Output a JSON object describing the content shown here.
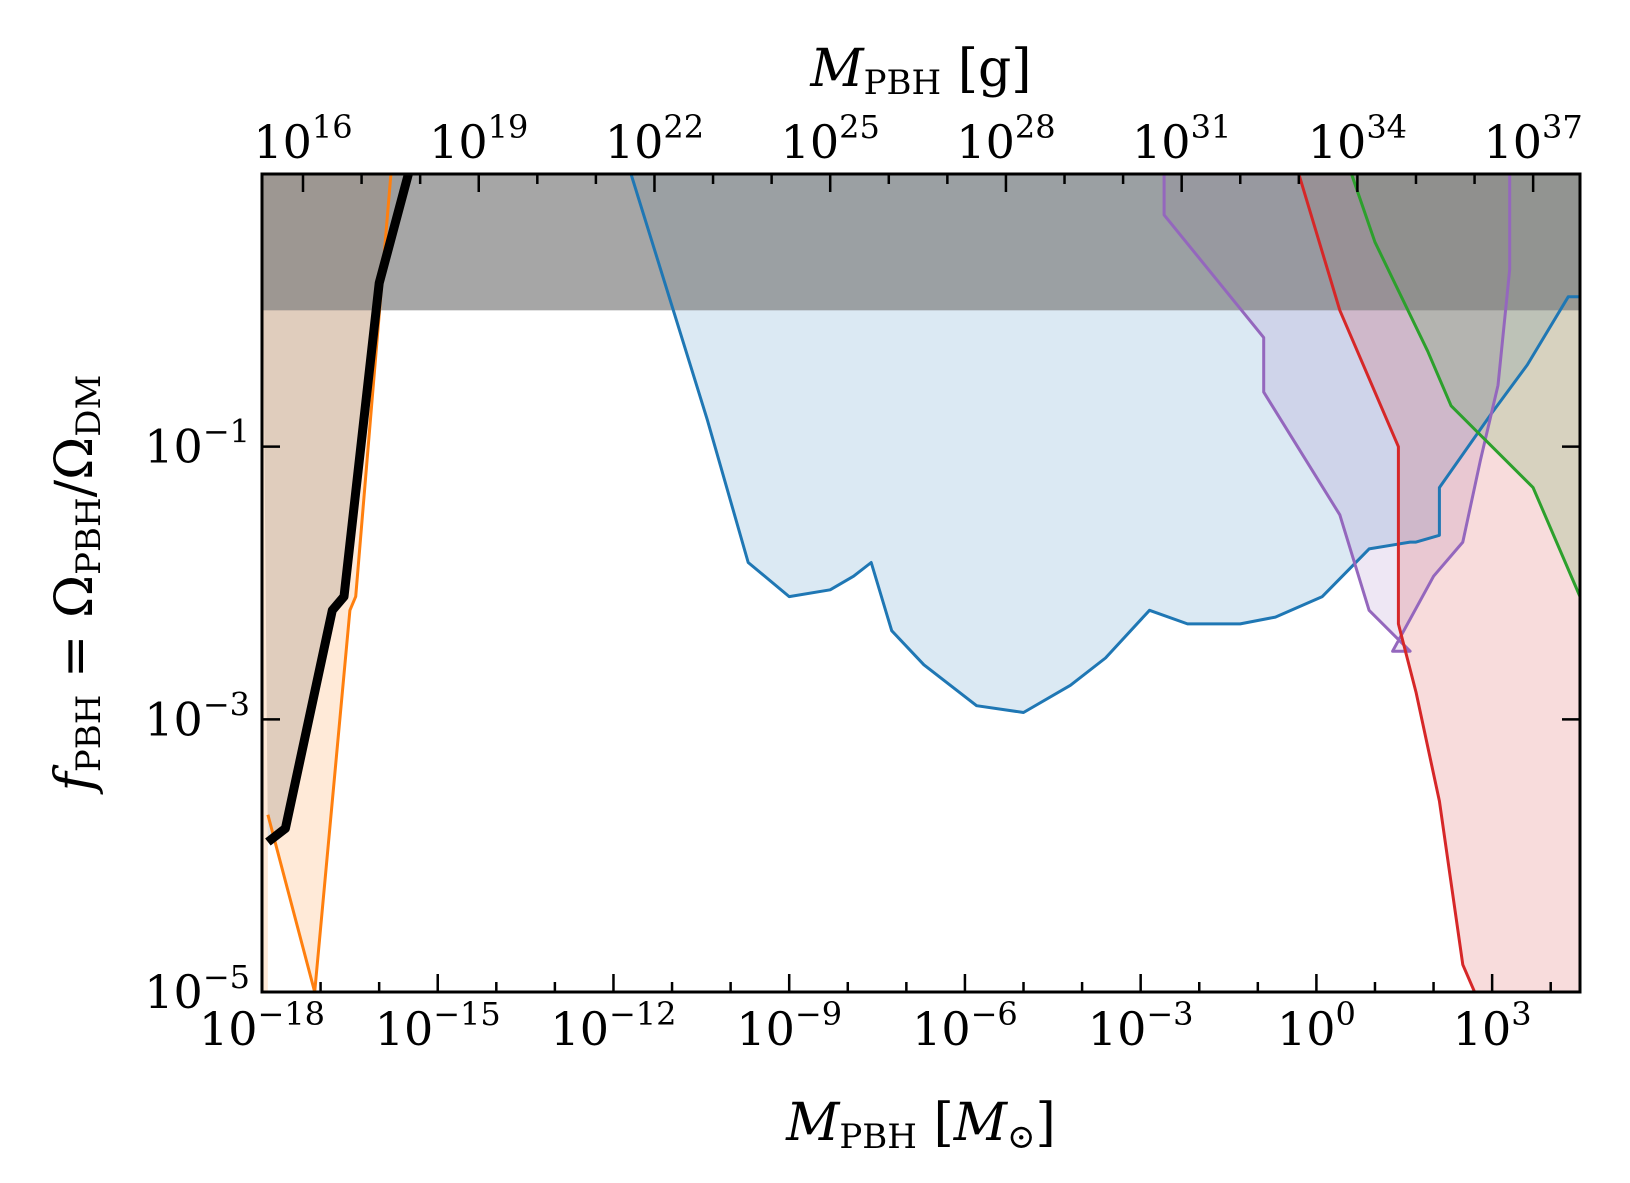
{
  "chart_data": {
    "type": "area",
    "xlabel": "M_PBH [M_⊙]",
    "xlabel_parts": {
      "sym": "M",
      "sub": "PBH",
      "unit_open": " [",
      "unit_sym": "M",
      "unit_sub": "⊙",
      "unit_close": "]"
    },
    "x2label": "M_PBH [g]",
    "x2label_parts": {
      "sym": "M",
      "sub": "PBH",
      "unit": " [g]"
    },
    "ylabel": "f_PBH = Ω_PBH/Ω_DM",
    "ylabel_parts": {
      "f": "f",
      "fsub": "PBH",
      "eq": " = Ω",
      "osub1": "PBH",
      "slash": "/Ω",
      "osub2": "DM"
    },
    "x_scale": "log",
    "y_scale": "log",
    "xlim_log10": [
      -18,
      4.5
    ],
    "ylim_log10": [
      -5,
      1
    ],
    "bottom_ticks": [
      {
        "base": "10",
        "exp": "−18",
        "log10": -18
      },
      {
        "base": "10",
        "exp": "−15",
        "log10": -15
      },
      {
        "base": "10",
        "exp": "−12",
        "log10": -12
      },
      {
        "base": "10",
        "exp": "−9",
        "log10": -9
      },
      {
        "base": "10",
        "exp": "−6",
        "log10": -6
      },
      {
        "base": "10",
        "exp": "−3",
        "log10": -3
      },
      {
        "base": "10",
        "exp": "0",
        "log10": 0
      },
      {
        "base": "10",
        "exp": "3",
        "log10": 3
      }
    ],
    "top_ticks": [
      {
        "base": "10",
        "exp": "16",
        "log10": 16
      },
      {
        "base": "10",
        "exp": "19",
        "log10": 19
      },
      {
        "base": "10",
        "exp": "22",
        "log10": 22
      },
      {
        "base": "10",
        "exp": "25",
        "log10": 25
      },
      {
        "base": "10",
        "exp": "28",
        "log10": 28
      },
      {
        "base": "10",
        "exp": "31",
        "log10": 31
      },
      {
        "base": "10",
        "exp": "34",
        "log10": 34
      },
      {
        "base": "10",
        "exp": "37",
        "log10": 37
      }
    ],
    "y_ticks": [
      {
        "base": "10",
        "exp": "−1",
        "log10": -1
      },
      {
        "base": "10",
        "exp": "−3",
        "log10": -3
      },
      {
        "base": "10",
        "exp": "−5",
        "log10": -5
      }
    ],
    "grams_per_solar_mass_log10": 33.3,
    "top_band": {
      "y_from_log10": 0,
      "color": "#808080"
    },
    "series": [
      {
        "color": "#ff7f0e",
        "points_log10": [
          [
            -17.9,
            -3.7
          ],
          [
            -17.1,
            -5
          ],
          [
            -16.5,
            -2.2
          ],
          [
            -16.4,
            -2.1
          ],
          [
            -15.8,
            1
          ]
        ]
      },
      {
        "color": "#1f77b4",
        "points_log10": [
          [
            -11.7,
            1
          ],
          [
            -10.4,
            -0.8
          ],
          [
            -9.7,
            -1.85
          ],
          [
            -9.0,
            -2.1
          ],
          [
            -8.3,
            -2.05
          ],
          [
            -7.9,
            -1.95
          ],
          [
            -7.6,
            -1.85
          ],
          [
            -7.25,
            -2.35
          ],
          [
            -6.7,
            -2.6
          ],
          [
            -5.8,
            -2.9
          ],
          [
            -5.0,
            -2.95
          ],
          [
            -4.2,
            -2.75
          ],
          [
            -3.6,
            -2.55
          ],
          [
            -2.85,
            -2.2
          ],
          [
            -2.2,
            -2.3
          ],
          [
            -1.3,
            -2.3
          ],
          [
            -0.7,
            -2.25
          ],
          [
            0.1,
            -2.1
          ],
          [
            0.9,
            -1.75
          ],
          [
            1.6,
            -1.7
          ],
          [
            1.7,
            -1.7
          ],
          [
            2.1,
            -1.65
          ],
          [
            2.1,
            -1.3
          ],
          [
            3.0,
            -0.75
          ],
          [
            3.6,
            -0.4
          ],
          [
            4.3,
            0.1
          ],
          [
            4.5,
            0.1
          ]
        ]
      },
      {
        "color": "#9467bd",
        "points_log10": [
          [
            -2.6,
            1
          ],
          [
            -2.6,
            0.7
          ],
          [
            -0.9,
            -0.2
          ],
          [
            -0.9,
            -0.6
          ],
          [
            0.4,
            -1.5
          ],
          [
            0.9,
            -2.2
          ],
          [
            1.6,
            -2.5
          ],
          [
            1.3,
            -2.5
          ],
          [
            2.0,
            -1.95
          ],
          [
            2.5,
            -1.7
          ],
          [
            2.8,
            -1.1
          ],
          [
            3.1,
            -0.55
          ],
          [
            3.3,
            0.3
          ],
          [
            3.3,
            1
          ]
        ]
      },
      {
        "color": "#d62728",
        "points_log10": [
          [
            -0.3,
            1
          ],
          [
            0.4,
            0.0
          ],
          [
            1.4,
            -1.0
          ],
          [
            1.4,
            -2.3
          ],
          [
            1.7,
            -2.8
          ],
          [
            2.1,
            -3.6
          ],
          [
            2.5,
            -4.8
          ],
          [
            2.7,
            -5
          ]
        ]
      },
      {
        "color": "#2ca02c",
        "points_log10": [
          [
            0.6,
            1
          ],
          [
            1.0,
            0.5
          ],
          [
            1.9,
            -0.3
          ],
          [
            2.3,
            -0.7
          ],
          [
            3.7,
            -1.3
          ],
          [
            4.5,
            -2.1
          ]
        ]
      },
      {
        "color": "#000000",
        "points_log10": [
          [
            -17.9,
            -3.9
          ],
          [
            -17.6,
            -3.8
          ],
          [
            -16.8,
            -2.2
          ],
          [
            -16.6,
            -2.1
          ],
          [
            -16.0,
            0.2
          ],
          [
            -15.5,
            1
          ]
        ]
      }
    ]
  }
}
